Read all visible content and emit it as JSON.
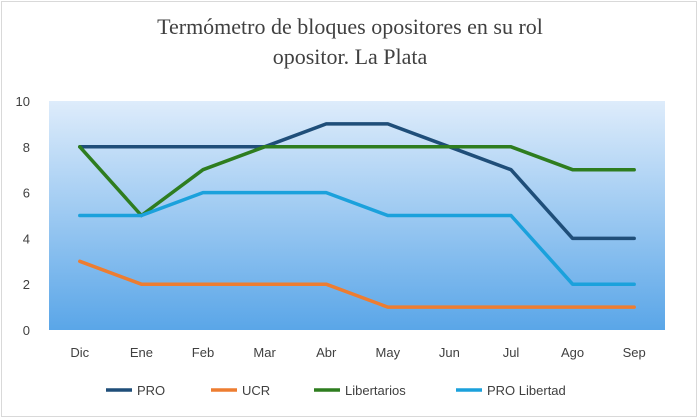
{
  "chart_data": {
    "type": "line",
    "title_line1": "Termómetro de bloques opositores en su rol",
    "title_line2": "opositor. La Plata",
    "categories": [
      "Dic",
      "Ene",
      "Feb",
      "Mar",
      "Abr",
      "May",
      "Jun",
      "Jul",
      "Ago",
      "Sep"
    ],
    "ylim": [
      0,
      10
    ],
    "yticks": [
      "0",
      "2",
      "4",
      "6",
      "8",
      "10"
    ],
    "grid": false,
    "legend_position": "bottom",
    "series": [
      {
        "name": "PRO",
        "color": "#1f4e79",
        "values": [
          8,
          8,
          8,
          8,
          9,
          9,
          8,
          7,
          4,
          4
        ]
      },
      {
        "name": "UCR",
        "color": "#ed7d31",
        "values": [
          3,
          2,
          2,
          2,
          2,
          1,
          1,
          1,
          1,
          1
        ]
      },
      {
        "name": "Libertarios",
        "color": "#2e7d1f",
        "values": [
          8,
          5,
          7,
          8,
          8,
          8,
          8,
          8,
          7,
          7
        ]
      },
      {
        "name": "PRO Libertad",
        "color": "#1ba1dc",
        "values": [
          5,
          5,
          6,
          6,
          6,
          5,
          5,
          5,
          2,
          2
        ]
      }
    ],
    "plot_background": [
      "#deecfb",
      "#5aa6e8"
    ]
  }
}
